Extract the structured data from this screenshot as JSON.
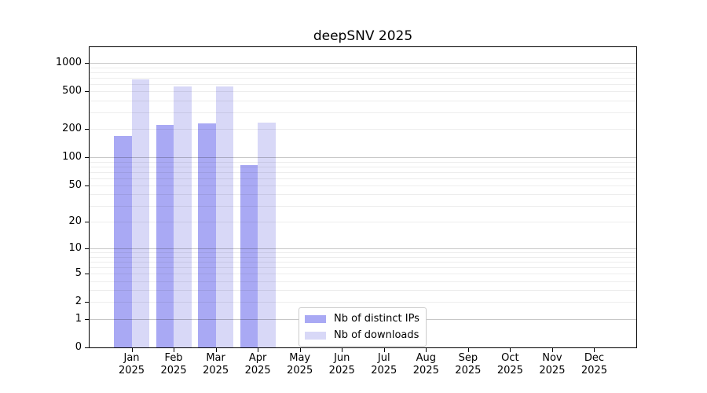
{
  "title": "deepSNV 2025",
  "colors": {
    "bar_distinct_ips": "#a9a9f4",
    "bar_downloads": "#d8d8f7",
    "grid_major": "rgba(0,0,0,0.22)",
    "grid_minor": "rgba(0,0,0,0.07)",
    "axis": "#000000",
    "legend_border": "#cccccc"
  },
  "chart_data": {
    "type": "bar",
    "title": "deepSNV 2025",
    "categories": [
      "Jan 2025",
      "Feb 2025",
      "Mar 2025",
      "Apr 2025",
      "May 2025",
      "Jun 2025",
      "Jul 2025",
      "Aug 2025",
      "Sep 2025",
      "Oct 2025",
      "Nov 2025",
      "Dec 2025"
    ],
    "series": [
      {
        "name": "Nb of distinct IPs",
        "color": "#a9a9f4",
        "values": [
          168,
          220,
          231,
          82,
          null,
          null,
          null,
          null,
          null,
          null,
          null,
          null
        ]
      },
      {
        "name": "Nb of downloads",
        "color": "#d8d8f7",
        "values": [
          670,
          565,
          565,
          232,
          null,
          null,
          null,
          null,
          null,
          null,
          null,
          null
        ]
      }
    ],
    "xlabel": "",
    "ylabel": "",
    "yscale": "log10(1+y)",
    "ylim": [
      0,
      1200
    ],
    "y_tick_values": [
      0,
      1,
      2,
      5,
      10,
      20,
      50,
      100,
      200,
      500,
      1000
    ],
    "y_major_gridlines": [
      1,
      10,
      100,
      1000
    ],
    "grid": "horizontal, log minor gridlines, drawn over bars",
    "legend_position": "lower center"
  }
}
